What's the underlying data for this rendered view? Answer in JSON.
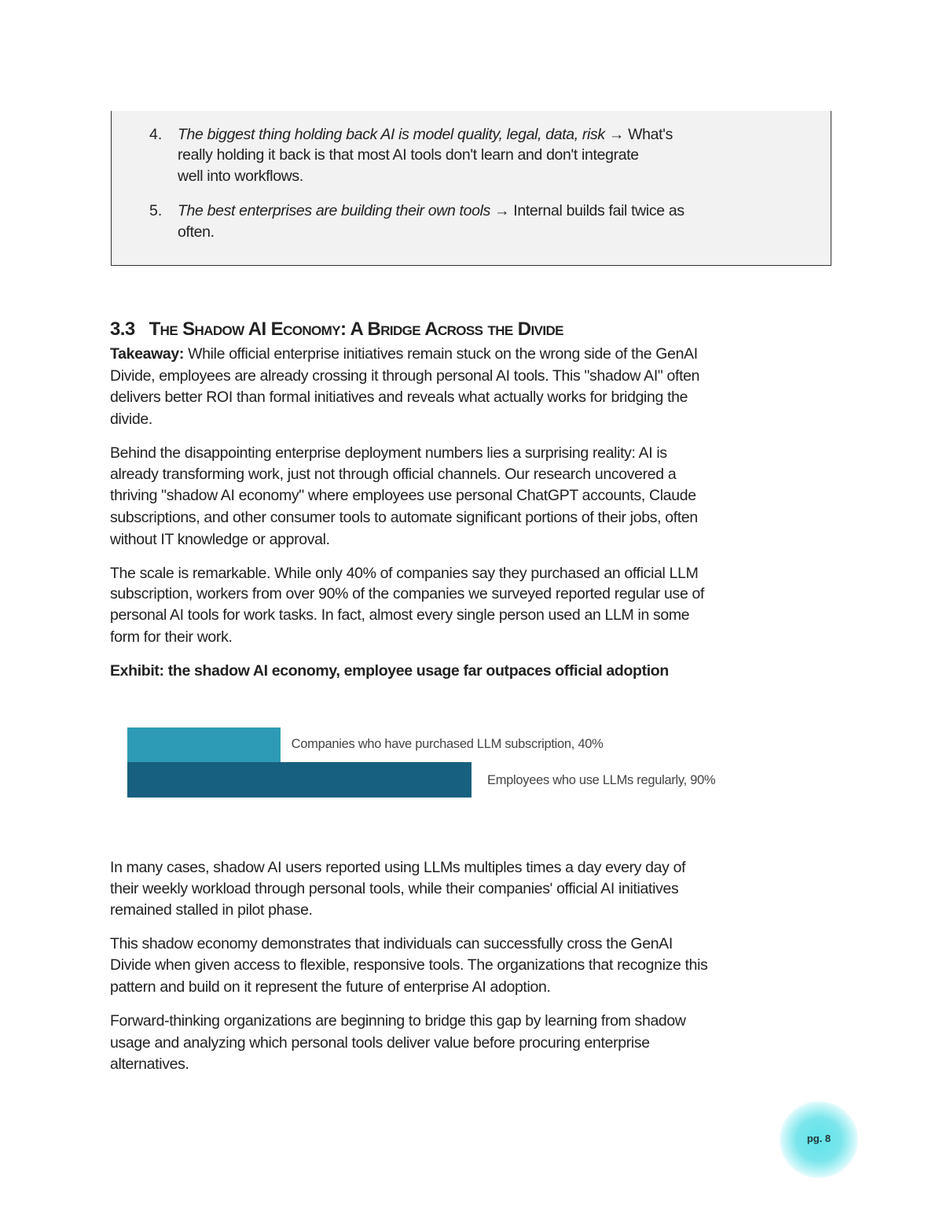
{
  "callout": {
    "items": [
      {
        "number": "4.",
        "lines": [
          {
            "italic": "The biggest thing holding back AI is model quality, legal, data, risk",
            "rest": " → What's"
          },
          {
            "italic": "",
            "rest": "really holding it back is that most AI tools don't learn and don't integrate"
          },
          {
            "italic": "",
            "rest": "well into workflows."
          }
        ]
      },
      {
        "number": "5.",
        "lines": [
          {
            "italic": "The best enterprises are building their own tools",
            "rest": " → Internal builds fail twice as"
          },
          {
            "italic": "",
            "rest": "often."
          }
        ]
      }
    ]
  },
  "section": {
    "number": "3.3",
    "title": "The Shadow AI Economy: A Bridge Across the Divide"
  },
  "takeaway": {
    "label": "Takeaway:",
    "lines": [
      " While official enterprise initiatives remain stuck on the wrong side of the GenAI",
      "Divide, employees are already crossing it through personal AI tools. This \"shadow AI\" often",
      "delivers better ROI than formal initiatives and reveals what actually works for bridging the",
      "divide."
    ]
  },
  "paragraphs_before": [
    [
      "Behind the disappointing enterprise deployment numbers lies a surprising reality: AI is",
      "already transforming work, just not through official channels. Our research uncovered a",
      "thriving \"shadow AI economy\" where employees use personal ChatGPT accounts, Claude",
      "subscriptions, and other consumer tools to automate significant portions of their jobs, often",
      "without IT knowledge or approval."
    ],
    [
      "The scale is remarkable. While only 40% of companies say they purchased an official LLM",
      "subscription, workers from over 90% of the companies we surveyed reported regular use of",
      "personal AI tools for work tasks. In fact, almost every single person used an LLM in some",
      "form for their work."
    ]
  ],
  "exhibit_title": "Exhibit: the shadow AI economy, employee usage far outpaces official adoption",
  "chart_data": {
    "type": "bar",
    "orientation": "horizontal",
    "categories": [
      "Companies who have purchased LLM subscription",
      "Employees who use LLMs regularly"
    ],
    "values": [
      40,
      90
    ],
    "data_labels": [
      "Companies who have purchased LLM subscription, 40%",
      "Employees who use LLMs regularly, 90%"
    ],
    "colors": [
      "#2e9bb6",
      "#17607f"
    ],
    "unit": "%",
    "grid": false
  },
  "paragraphs_after": [
    [
      "In many cases, shadow AI users reported using LLMs multiples times a day every day of",
      "their weekly workload through personal tools, while their companies' official AI initiatives",
      "remained stalled in pilot phase."
    ],
    [
      "This shadow economy demonstrates that individuals can successfully cross the GenAI",
      "Divide when given access to flexible, responsive tools. The organizations that recognize this",
      "pattern and build on it represent the future of enterprise AI adoption."
    ],
    [
      "Forward-thinking organizations are beginning to bridge this gap by learning from shadow",
      "usage and analyzing which personal tools deliver value before procuring enterprise",
      "alternatives."
    ]
  ],
  "page_number": "pg. 8"
}
